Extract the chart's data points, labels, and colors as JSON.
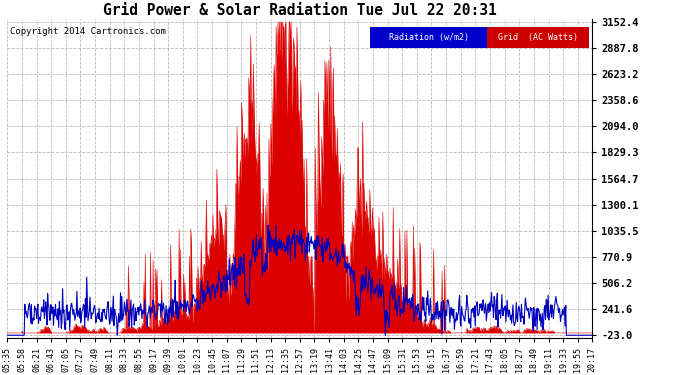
{
  "title": "Grid Power & Solar Radiation Tue Jul 22 20:31",
  "copyright": "Copyright 2014 Cartronics.com",
  "legend_radiation": "Radiation (w/m2)",
  "legend_grid": "Grid  (AC Watts)",
  "yticks": [
    3152.4,
    2887.8,
    2623.2,
    2358.6,
    2094.0,
    1829.3,
    1564.7,
    1300.1,
    1035.5,
    770.9,
    506.2,
    241.6,
    -23.0
  ],
  "ymin": -23.0,
  "ymax": 3152.4,
  "bg_color": "#ffffff",
  "plot_bg_color": "#ffffff",
  "grid_color": "#bbbbbb",
  "radiation_color": "#dd0000",
  "grid_line_color": "#0000bb",
  "time_labels": [
    "05:35",
    "05:58",
    "06:21",
    "06:43",
    "07:05",
    "07:27",
    "07:49",
    "08:11",
    "08:33",
    "08:55",
    "09:17",
    "09:39",
    "10:01",
    "10:23",
    "10:45",
    "11:07",
    "11:29",
    "11:51",
    "12:13",
    "12:35",
    "12:57",
    "13:19",
    "13:41",
    "14:03",
    "14:25",
    "14:47",
    "15:09",
    "15:31",
    "15:53",
    "16:15",
    "16:37",
    "16:59",
    "17:21",
    "17:43",
    "18:05",
    "18:27",
    "18:49",
    "19:11",
    "19:33",
    "19:55",
    "20:17"
  ]
}
